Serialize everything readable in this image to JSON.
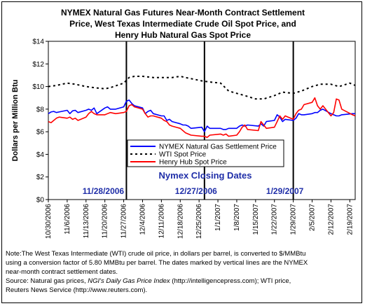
{
  "chart_data": {
    "type": "line",
    "title_lines": [
      "NYMEX Natural Gas Futures Near-Month Contract Settlement",
      "Price, West Texas Intermediate Crude Oil Spot Price, and",
      "Henry Hub Natural Gas Spot Price"
    ],
    "ylabel": "Dollars per Million Btu",
    "ylim": [
      0,
      14
    ],
    "y_ticks": [
      "$0",
      "$2",
      "$4",
      "$6",
      "$8",
      "$10",
      "$12",
      "$14"
    ],
    "x_ticks": [
      "10/30/2006",
      "11/6/2006",
      "11/13/2006",
      "11/20/2006",
      "11/27/2006",
      "12/4/2006",
      "12/11/2006",
      "12/18/2006",
      "12/25/2006",
      "1/1/2007",
      "1/8/2007",
      "1/15/2007",
      "1/22/2007",
      "1/29/2007",
      "2/5/2007",
      "2/12/2007",
      "2/19/2007"
    ],
    "x_start": "10/30/2006",
    "x_end": "2/21/2007",
    "legend_position": "center-right",
    "annotation": "Nymex Closing Dates",
    "closing_dates": [
      "11/28/2006",
      "12/27/2006",
      "1/29/2007"
    ],
    "series": [
      {
        "name": "NYMEX Natural Gas Settlement Price",
        "color": "#0000ff",
        "style": "solid",
        "points": [
          [
            "10/30/2006",
            7.6
          ],
          [
            "10/31/2006",
            7.75
          ],
          [
            "11/1/2006",
            7.8
          ],
          [
            "11/2/2006",
            7.7
          ],
          [
            "11/3/2006",
            7.75
          ],
          [
            "11/6/2006",
            7.9
          ],
          [
            "11/7/2006",
            7.6
          ],
          [
            "11/8/2006",
            7.85
          ],
          [
            "11/9/2006",
            7.9
          ],
          [
            "11/10/2006",
            7.7
          ],
          [
            "11/13/2006",
            7.9
          ],
          [
            "11/14/2006",
            8.0
          ],
          [
            "11/15/2006",
            7.9
          ],
          [
            "11/16/2006",
            8.1
          ],
          [
            "11/17/2006",
            7.6
          ],
          [
            "11/20/2006",
            8.1
          ],
          [
            "11/21/2006",
            8.2
          ],
          [
            "11/22/2006",
            8.0
          ],
          [
            "11/24/2006",
            8.0
          ],
          [
            "11/27/2006",
            8.2
          ],
          [
            "11/28/2006",
            8.7
          ],
          [
            "11/29/2006",
            8.8
          ],
          [
            "11/30/2006",
            8.5
          ],
          [
            "12/1/2006",
            8.3
          ],
          [
            "12/4/2006",
            8.1
          ],
          [
            "12/5/2006",
            7.6
          ],
          [
            "12/6/2006",
            7.8
          ],
          [
            "12/7/2006",
            7.9
          ],
          [
            "12/8/2006",
            7.6
          ],
          [
            "12/11/2006",
            7.4
          ],
          [
            "12/12/2006",
            7.4
          ],
          [
            "12/13/2006",
            7.0
          ],
          [
            "12/14/2006",
            7.1
          ],
          [
            "12/15/2006",
            6.9
          ],
          [
            "12/18/2006",
            6.7
          ],
          [
            "12/19/2006",
            6.6
          ],
          [
            "12/20/2006",
            6.6
          ],
          [
            "12/21/2006",
            6.5
          ],
          [
            "12/22/2006",
            6.3
          ],
          [
            "12/26/2006",
            6.4
          ],
          [
            "12/27/2006",
            6.0
          ],
          [
            "12/28/2006",
            6.5
          ],
          [
            "12/29/2006",
            6.3
          ],
          [
            "1/2/2007",
            6.3
          ],
          [
            "1/3/2007",
            6.2
          ],
          [
            "1/4/2007",
            6.2
          ],
          [
            "1/5/2007",
            6.3
          ],
          [
            "1/8/2007",
            6.3
          ],
          [
            "1/9/2007",
            6.5
          ],
          [
            "1/10/2007",
            6.6
          ],
          [
            "1/11/2007",
            6.5
          ],
          [
            "1/12/2007",
            6.6
          ],
          [
            "1/16/2007",
            6.5
          ],
          [
            "1/17/2007",
            6.7
          ],
          [
            "1/18/2007",
            6.5
          ],
          [
            "1/19/2007",
            6.9
          ],
          [
            "1/22/2007",
            7.0
          ],
          [
            "1/23/2007",
            7.5
          ],
          [
            "1/24/2007",
            7.3
          ],
          [
            "1/25/2007",
            6.9
          ],
          [
            "1/26/2007",
            7.1
          ],
          [
            "1/29/2007",
            7.0
          ],
          [
            "1/30/2007",
            7.2
          ],
          [
            "1/31/2007",
            7.6
          ],
          [
            "2/1/2007",
            7.5
          ],
          [
            "2/2/2007",
            7.5
          ],
          [
            "2/5/2007",
            7.6
          ],
          [
            "2/6/2007",
            7.7
          ],
          [
            "2/7/2007",
            7.7
          ],
          [
            "2/8/2007",
            7.9
          ],
          [
            "2/9/2007",
            8.0
          ],
          [
            "2/12/2007",
            7.6
          ],
          [
            "2/13/2007",
            7.5
          ],
          [
            "2/14/2007",
            7.4
          ],
          [
            "2/15/2007",
            7.4
          ],
          [
            "2/16/2007",
            7.5
          ],
          [
            "2/20/2007",
            7.6
          ],
          [
            "2/21/2007",
            7.6
          ]
        ]
      },
      {
        "name": "WTI Spot Price",
        "color": "#000000",
        "style": "dotted",
        "points": [
          [
            "10/30/2006",
            10.0
          ],
          [
            "11/2/2006",
            10.1
          ],
          [
            "11/6/2006",
            10.3
          ],
          [
            "11/9/2006",
            10.2
          ],
          [
            "11/13/2006",
            10.0
          ],
          [
            "11/16/2006",
            9.9
          ],
          [
            "11/20/2006",
            9.8
          ],
          [
            "11/22/2006",
            9.9
          ],
          [
            "11/27/2006",
            10.3
          ],
          [
            "11/29/2006",
            10.8
          ],
          [
            "12/1/2006",
            10.9
          ],
          [
            "12/4/2006",
            10.9
          ],
          [
            "12/8/2006",
            10.8
          ],
          [
            "12/11/2006",
            10.8
          ],
          [
            "12/15/2006",
            10.8
          ],
          [
            "12/18/2006",
            10.9
          ],
          [
            "12/20/2006",
            10.8
          ],
          [
            "12/22/2006",
            10.7
          ],
          [
            "12/26/2006",
            10.5
          ],
          [
            "12/29/2006",
            10.4
          ],
          [
            "1/2/2007",
            10.3
          ],
          [
            "1/5/2007",
            9.6
          ],
          [
            "1/8/2007",
            9.4
          ],
          [
            "1/11/2007",
            9.2
          ],
          [
            "1/15/2007",
            8.9
          ],
          [
            "1/18/2007",
            8.9
          ],
          [
            "1/22/2007",
            9.2
          ],
          [
            "1/25/2007",
            9.5
          ],
          [
            "1/29/2007",
            9.4
          ],
          [
            "2/1/2007",
            9.6
          ],
          [
            "2/5/2007",
            10.0
          ],
          [
            "2/8/2007",
            10.2
          ],
          [
            "2/12/2007",
            10.2
          ],
          [
            "2/15/2007",
            10.0
          ],
          [
            "2/19/2007",
            10.3
          ],
          [
            "2/21/2007",
            10.1
          ]
        ]
      },
      {
        "name": "Henry Hub Spot Price",
        "color": "#ff0000",
        "style": "solid",
        "points": [
          [
            "10/30/2006",
            6.9
          ],
          [
            "10/31/2006",
            6.8
          ],
          [
            "11/1/2006",
            7.0
          ],
          [
            "11/2/2006",
            7.2
          ],
          [
            "11/3/2006",
            7.3
          ],
          [
            "11/6/2006",
            7.2
          ],
          [
            "11/7/2006",
            7.3
          ],
          [
            "11/8/2006",
            7.1
          ],
          [
            "11/9/2006",
            7.2
          ],
          [
            "11/10/2006",
            7.0
          ],
          [
            "11/13/2006",
            7.3
          ],
          [
            "11/14/2006",
            7.6
          ],
          [
            "11/15/2006",
            7.8
          ],
          [
            "11/16/2006",
            7.6
          ],
          [
            "11/17/2006",
            7.5
          ],
          [
            "11/20/2006",
            7.5
          ],
          [
            "11/21/2006",
            7.6
          ],
          [
            "11/22/2006",
            7.7
          ],
          [
            "11/24/2006",
            7.6
          ],
          [
            "11/27/2006",
            7.7
          ],
          [
            "11/28/2006",
            7.8
          ],
          [
            "11/29/2006",
            8.3
          ],
          [
            "11/30/2006",
            8.4
          ],
          [
            "12/1/2006",
            8.2
          ],
          [
            "12/4/2006",
            8.0
          ],
          [
            "12/5/2006",
            7.6
          ],
          [
            "12/6/2006",
            7.3
          ],
          [
            "12/7/2006",
            7.4
          ],
          [
            "12/8/2006",
            7.4
          ],
          [
            "12/11/2006",
            7.2
          ],
          [
            "12/12/2006",
            7.0
          ],
          [
            "12/13/2006",
            6.9
          ],
          [
            "12/14/2006",
            6.6
          ],
          [
            "12/15/2006",
            6.5
          ],
          [
            "12/18/2006",
            6.3
          ],
          [
            "12/19/2006",
            6.1
          ],
          [
            "12/20/2006",
            5.9
          ],
          [
            "12/21/2006",
            5.8
          ],
          [
            "12/22/2006",
            5.7
          ],
          [
            "12/26/2006",
            5.6
          ],
          [
            "12/27/2006",
            5.6
          ],
          [
            "12/28/2006",
            5.5
          ],
          [
            "12/29/2006",
            5.7
          ],
          [
            "1/2/2007",
            5.8
          ],
          [
            "1/3/2007",
            5.7
          ],
          [
            "1/4/2007",
            5.8
          ],
          [
            "1/5/2007",
            5.6
          ],
          [
            "1/8/2007",
            5.7
          ],
          [
            "1/9/2007",
            6.0
          ],
          [
            "1/10/2007",
            6.4
          ],
          [
            "1/11/2007",
            6.6
          ],
          [
            "1/12/2007",
            6.2
          ],
          [
            "1/16/2007",
            6.1
          ],
          [
            "1/17/2007",
            6.9
          ],
          [
            "1/18/2007",
            6.6
          ],
          [
            "1/19/2007",
            6.3
          ],
          [
            "1/22/2007",
            6.4
          ],
          [
            "1/23/2007",
            6.9
          ],
          [
            "1/24/2007",
            7.4
          ],
          [
            "1/25/2007",
            7.1
          ],
          [
            "1/26/2007",
            7.4
          ],
          [
            "1/29/2007",
            7.1
          ],
          [
            "1/30/2007",
            7.6
          ],
          [
            "1/31/2007",
            7.9
          ],
          [
            "2/1/2007",
            8.0
          ],
          [
            "2/2/2007",
            8.4
          ],
          [
            "2/5/2007",
            8.6
          ],
          [
            "2/6/2007",
            9.0
          ],
          [
            "2/7/2007",
            8.3
          ],
          [
            "2/8/2007",
            8.0
          ],
          [
            "2/9/2007",
            8.3
          ],
          [
            "2/12/2007",
            7.4
          ],
          [
            "2/13/2007",
            7.7
          ],
          [
            "2/14/2007",
            8.9
          ],
          [
            "2/15/2007",
            8.8
          ],
          [
            "2/16/2007",
            8.0
          ],
          [
            "2/20/2007",
            7.5
          ],
          [
            "2/21/2007",
            7.4
          ]
        ]
      }
    ]
  },
  "note": {
    "line1": "Note:The West Texas Intermediate (WTI) crude oil price, in dollars per barrel,  is converted to $/MMBtu",
    "line2": "using a conversion factor of 5.80 MMBtu per barrel.  The dates marked by vertical lines are the NYMEX",
    "line3": "near-month contract settlement dates.",
    "source_prefix": "Source: Natural gas prices, ",
    "source_italic": "NGI's Daily Gas Price Index",
    "source_mid": " (http://intelligencepress.com); WTI price,",
    "line5": "Reuters News Service (http://www.reuters.com)."
  }
}
